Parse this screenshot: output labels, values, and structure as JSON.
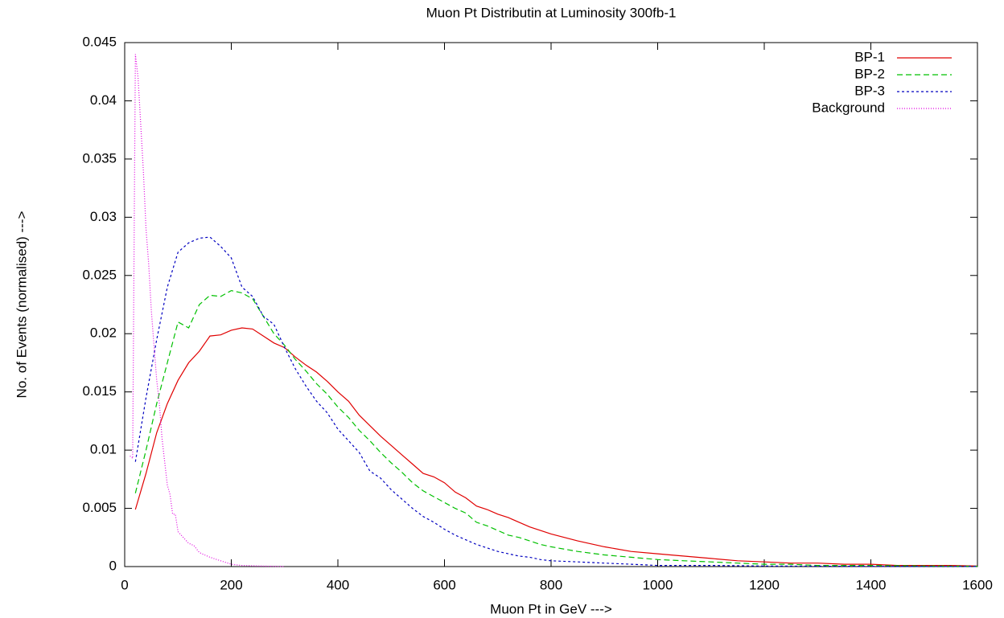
{
  "chart_data": {
    "type": "line",
    "title": "Muon Pt Distributin at Luminosity 300fb-1",
    "x_label": "Muon Pt in GeV --->",
    "y_label": "No. of Events (normalised) --->",
    "xlim": [
      0,
      1600
    ],
    "xticks": [
      0,
      200,
      400,
      600,
      800,
      1000,
      1200,
      1400,
      1600
    ],
    "ylim": [
      0,
      0.045
    ],
    "yticks": [
      0,
      0.005,
      0.01,
      0.015,
      0.02,
      0.025,
      0.03,
      0.035,
      0.04,
      0.045
    ],
    "legend": "upper right",
    "series": [
      {
        "name": "BP-1",
        "color": "#e00000",
        "dash": "solid",
        "x": [
          20,
          40,
          60,
          80,
          100,
          120,
          140,
          160,
          180,
          200,
          220,
          240,
          260,
          280,
          300,
          320,
          340,
          360,
          380,
          400,
          420,
          440,
          460,
          480,
          500,
          520,
          540,
          560,
          580,
          600,
          620,
          640,
          660,
          680,
          700,
          720,
          740,
          760,
          780,
          800,
          850,
          900,
          950,
          1000,
          1050,
          1100,
          1150,
          1200,
          1250,
          1300,
          1350,
          1400,
          1450,
          1500,
          1550,
          1600
        ],
        "values": [
          0.0049,
          0.008,
          0.0115,
          0.014,
          0.016,
          0.0175,
          0.0185,
          0.0198,
          0.0199,
          0.0203,
          0.0205,
          0.0204,
          0.0198,
          0.0192,
          0.0188,
          0.018,
          0.0173,
          0.0167,
          0.0159,
          0.015,
          0.0142,
          0.013,
          0.0121,
          0.0112,
          0.0104,
          0.0096,
          0.0088,
          0.008,
          0.0077,
          0.0072,
          0.0064,
          0.0059,
          0.0052,
          0.0049,
          0.0045,
          0.0042,
          0.0038,
          0.0034,
          0.0031,
          0.0028,
          0.0022,
          0.0017,
          0.0013,
          0.0011,
          0.0009,
          0.0007,
          0.0005,
          0.0004,
          0.0003,
          0.0003,
          0.0002,
          0.0002,
          0.0001,
          0.0001,
          0.0001,
          5e-05
        ]
      },
      {
        "name": "BP-2",
        "color": "#00c000",
        "dash": "dashed",
        "x": [
          20,
          40,
          60,
          80,
          100,
          120,
          140,
          160,
          180,
          200,
          220,
          240,
          260,
          280,
          300,
          320,
          340,
          360,
          380,
          400,
          420,
          440,
          460,
          480,
          500,
          520,
          540,
          560,
          580,
          600,
          620,
          640,
          660,
          680,
          700,
          720,
          740,
          760,
          780,
          800,
          850,
          900,
          950,
          1000,
          1050,
          1100,
          1150,
          1200,
          1250,
          1300,
          1400,
          1500,
          1600
        ],
        "values": [
          0.0063,
          0.01,
          0.014,
          0.0175,
          0.021,
          0.0205,
          0.0225,
          0.0233,
          0.0232,
          0.0237,
          0.0235,
          0.023,
          0.0215,
          0.02,
          0.019,
          0.0178,
          0.0168,
          0.0157,
          0.0148,
          0.0137,
          0.0128,
          0.0117,
          0.0108,
          0.0098,
          0.0089,
          0.0081,
          0.0072,
          0.0065,
          0.006,
          0.0055,
          0.005,
          0.0046,
          0.0038,
          0.0035,
          0.0031,
          0.0027,
          0.0025,
          0.0022,
          0.0019,
          0.0017,
          0.0013,
          0.001,
          0.0008,
          0.0006,
          0.0005,
          0.0004,
          0.0003,
          0.0002,
          0.0002,
          0.0001,
          0.0001,
          5e-05,
          3e-05
        ]
      },
      {
        "name": "BP-3",
        "color": "#0000c0",
        "dash": "short-dash",
        "x": [
          20,
          40,
          60,
          80,
          100,
          120,
          140,
          160,
          180,
          200,
          220,
          240,
          260,
          280,
          300,
          320,
          340,
          360,
          380,
          400,
          420,
          440,
          460,
          480,
          500,
          520,
          540,
          560,
          580,
          600,
          620,
          640,
          660,
          680,
          700,
          720,
          740,
          760,
          780,
          800,
          850,
          900,
          950,
          1000,
          1100,
          1200,
          1400,
          1600
        ],
        "values": [
          0.009,
          0.0145,
          0.0195,
          0.024,
          0.027,
          0.0278,
          0.0282,
          0.0283,
          0.0275,
          0.0265,
          0.024,
          0.0232,
          0.0215,
          0.0208,
          0.0188,
          0.017,
          0.0155,
          0.0142,
          0.0132,
          0.0118,
          0.0108,
          0.0098,
          0.0082,
          0.0076,
          0.0066,
          0.0058,
          0.005,
          0.0043,
          0.0038,
          0.0032,
          0.0027,
          0.0023,
          0.0019,
          0.0016,
          0.0013,
          0.0011,
          0.0009,
          0.0008,
          0.0006,
          0.0005,
          0.0004,
          0.0003,
          0.0002,
          0.0001,
          0.0001,
          5e-05,
          2e-05,
          1e-05
        ]
      },
      {
        "name": "Background",
        "color": "#e000e0",
        "dash": "dotted",
        "x": [
          10,
          15,
          20,
          25,
          30,
          35,
          40,
          45,
          50,
          55,
          60,
          65,
          70,
          75,
          80,
          85,
          90,
          95,
          100,
          110,
          120,
          130,
          140,
          150,
          160,
          180,
          200,
          220,
          250,
          280,
          300
        ],
        "values": [
          0.0095,
          0.0093,
          0.044,
          0.042,
          0.038,
          0.034,
          0.029,
          0.026,
          0.022,
          0.019,
          0.016,
          0.014,
          0.011,
          0.009,
          0.007,
          0.0062,
          0.0045,
          0.0045,
          0.003,
          0.0025,
          0.002,
          0.0018,
          0.0012,
          0.001,
          0.0008,
          0.0005,
          0.0002,
          0.0001,
          5e-05,
          2e-05,
          0
        ]
      }
    ]
  }
}
